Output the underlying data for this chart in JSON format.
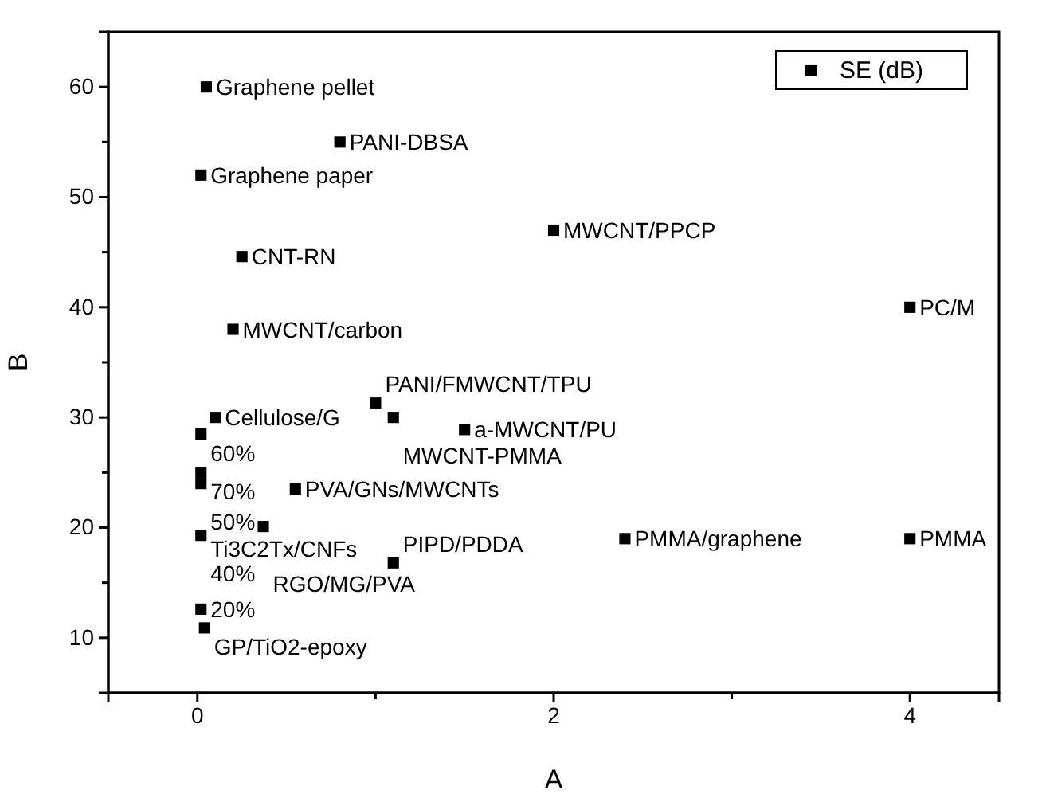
{
  "chart_data": {
    "type": "scatter",
    "xlabel": "A",
    "ylabel": "B",
    "xlim": [
      -0.5,
      4.5
    ],
    "xticks": [
      0,
      {
        "value": 1,
        "label": null
      },
      2,
      {
        "value": 3,
        "label": null
      },
      4
    ],
    "ylim": [
      5,
      65
    ],
    "yticks": [
      10,
      {
        "value": 15,
        "label": null
      },
      20,
      {
        "value": 25,
        "label": null
      },
      30,
      {
        "value": 35,
        "label": null
      },
      40,
      {
        "value": 45,
        "label": null
      },
      50,
      {
        "value": 55,
        "label": null
      },
      60
    ],
    "grid": false,
    "legend": "top right",
    "marker": "square",
    "series": [
      {
        "name": "SE (dB)",
        "color": "#000000",
        "x": [
          0.05,
          0.8,
          0.02,
          2,
          0.25,
          4,
          0.2,
          1.0,
          0.1,
          1.1,
          1.5,
          0.02,
          0.02,
          0.02,
          0.55,
          0.02,
          0.37,
          2.4,
          4,
          1.1,
          0.02,
          0.04
        ],
        "values": [
          60,
          55,
          52,
          47,
          44.6,
          40,
          38,
          31.3,
          30,
          30,
          28.9,
          28.5,
          25,
          24,
          23.5,
          19.3,
          20.1,
          19,
          19,
          16.8,
          12.6,
          10.9
        ]
      }
    ],
    "annotations": [
      {
        "text": "Graphene pellet",
        "x": 0.05,
        "y": 60
      },
      {
        "text": "PANI-DBSA",
        "x": 0.8,
        "y": 55
      },
      {
        "text": "Graphene paper",
        "x": 0.02,
        "y": 52
      },
      {
        "text": "MWCNT/PPCP",
        "x": 2,
        "y": 47
      },
      {
        "text": "CNT-RN",
        "x": 0.25,
        "y": 44.6
      },
      {
        "text": "PC/M",
        "x": 4,
        "y": 40
      },
      {
        "text": "MWCNT/carbon",
        "x": 0.2,
        "y": 38
      },
      {
        "text": "PANI/FMWCNT/TPU",
        "x": 1.0,
        "y": 31.3
      },
      {
        "text": "Cellulose/G",
        "x": 0.1,
        "y": 30
      },
      {
        "text": "MWCNT-PMMA",
        "x": 1.1,
        "y": 30
      },
      {
        "text": "a-MWCNT/PU",
        "x": 1.5,
        "y": 28.9
      },
      {
        "text": "60%",
        "x": 0.02,
        "y": 28.5
      },
      {
        "text": "70%",
        "x": 0.02,
        "y": 25
      },
      {
        "text": "Ti3C2Tx/CNFs",
        "x": 0.02,
        "y": 25
      },
      {
        "text": "50%",
        "x": 0.02,
        "y": 24
      },
      {
        "text": "PVA/GNs/MWCNTs",
        "x": 0.55,
        "y": 23.5
      },
      {
        "text": "40%",
        "x": 0.02,
        "y": 19.3
      },
      {
        "text": "RGO/MG/PVA",
        "x": 0.37,
        "y": 20.1
      },
      {
        "text": "PMMA/graphene",
        "x": 2.4,
        "y": 19
      },
      {
        "text": "PMMA",
        "x": 4,
        "y": 19
      },
      {
        "text": "PIPD/PDDA",
        "x": 1.1,
        "y": 16.8
      },
      {
        "text": "20%",
        "x": 0.02,
        "y": 12.6
      },
      {
        "text": "GP/TiO2-epoxy",
        "x": 0.04,
        "y": 10.9
      }
    ]
  }
}
